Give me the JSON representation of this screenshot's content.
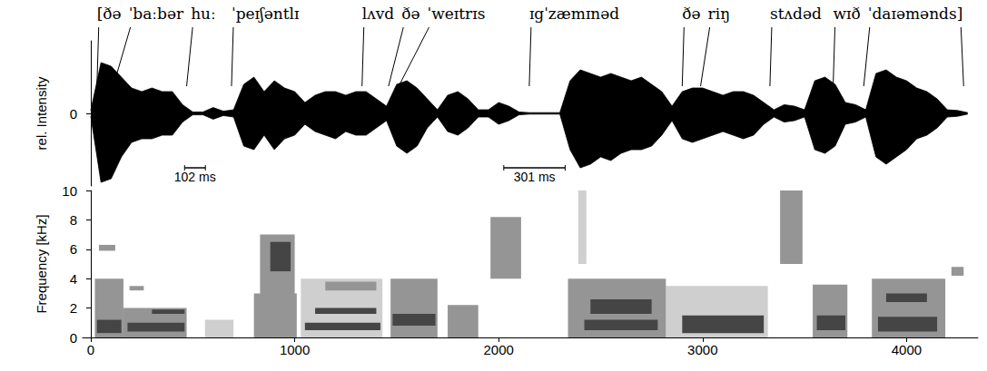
{
  "chart_data": [
    {
      "type": "area",
      "ylabel": "rel. Intensity",
      "xlim": [
        -40,
        4350
      ],
      "ylim": [
        -1,
        1
      ],
      "yticks": [
        0
      ],
      "tick_labels": "y",
      "x": [
        0,
        50,
        100,
        150,
        200,
        250,
        300,
        350,
        400,
        450,
        500,
        550,
        600,
        650,
        700,
        750,
        800,
        850,
        900,
        950,
        1000,
        1050,
        1100,
        1150,
        1200,
        1250,
        1300,
        1350,
        1400,
        1450,
        1500,
        1550,
        1600,
        1650,
        1700,
        1750,
        1800,
        1850,
        1900,
        1950,
        2000,
        2050,
        2100,
        2150,
        2200,
        2250,
        2300,
        2350,
        2400,
        2450,
        2500,
        2550,
        2600,
        2650,
        2700,
        2750,
        2800,
        2850,
        2900,
        2950,
        3000,
        3050,
        3100,
        3150,
        3200,
        3250,
        3300,
        3350,
        3400,
        3450,
        3500,
        3550,
        3600,
        3650,
        3700,
        3750,
        3800,
        3850,
        3900,
        3950,
        4000,
        4050,
        4100,
        4150,
        4200,
        4250,
        4300
      ],
      "series": [
        {
          "color": "#000000",
          "values": [
            0.04,
            0.7,
            0.65,
            0.5,
            0.35,
            0.3,
            0.35,
            0.3,
            0.3,
            0.12,
            0.02,
            0.02,
            0.08,
            0.03,
            0.05,
            0.4,
            0.5,
            0.3,
            0.45,
            0.35,
            0.3,
            0.15,
            0.25,
            0.3,
            0.3,
            0.25,
            0.3,
            0.3,
            0.2,
            0.1,
            0.4,
            0.45,
            0.35,
            0.2,
            0.05,
            0.25,
            0.3,
            0.2,
            0.05,
            0.05,
            0.15,
            0.1,
            0.02,
            0.01,
            0.01,
            0.01,
            0.01,
            0.45,
            0.6,
            0.55,
            0.5,
            0.55,
            0.5,
            0.45,
            0.5,
            0.4,
            0.3,
            0.1,
            0.3,
            0.35,
            0.35,
            0.3,
            0.25,
            0.3,
            0.3,
            0.25,
            0.15,
            0.05,
            0.12,
            0.1,
            0.05,
            0.45,
            0.5,
            0.4,
            0.15,
            0.12,
            0.05,
            0.55,
            0.6,
            0.5,
            0.45,
            0.35,
            0.3,
            0.2,
            0.05,
            0.04,
            0.01
          ]
        },
        {
          "color": "#000000",
          "values": [
            -0.04,
            -0.95,
            -0.9,
            -0.6,
            -0.4,
            -0.35,
            -0.35,
            -0.3,
            -0.3,
            -0.12,
            -0.02,
            -0.02,
            -0.08,
            -0.03,
            -0.05,
            -0.45,
            -0.5,
            -0.3,
            -0.5,
            -0.35,
            -0.3,
            -0.15,
            -0.25,
            -0.3,
            -0.35,
            -0.25,
            -0.3,
            -0.3,
            -0.2,
            -0.1,
            -0.45,
            -0.55,
            -0.45,
            -0.2,
            -0.05,
            -0.25,
            -0.3,
            -0.2,
            -0.05,
            -0.05,
            -0.15,
            -0.1,
            -0.02,
            -0.01,
            -0.01,
            -0.01,
            -0.01,
            -0.5,
            -0.75,
            -0.7,
            -0.6,
            -0.65,
            -0.55,
            -0.5,
            -0.5,
            -0.45,
            -0.3,
            -0.1,
            -0.35,
            -0.4,
            -0.35,
            -0.3,
            -0.25,
            -0.3,
            -0.35,
            -0.3,
            -0.15,
            -0.05,
            -0.12,
            -0.1,
            -0.05,
            -0.5,
            -0.55,
            -0.45,
            -0.15,
            -0.12,
            -0.05,
            -0.6,
            -0.7,
            -0.6,
            -0.5,
            -0.35,
            -0.3,
            -0.2,
            -0.05,
            -0.04,
            -0.01
          ]
        }
      ],
      "annotations": {
        "transcription": [
          {
            "text": "[ðə",
            "time": 30
          },
          {
            "text": "ˈbaːbər",
            "time": 110
          },
          {
            "text": "huː",
            "time": 470
          },
          {
            "text": "ˈpeɪʃəntlɪ",
            "time": 690
          },
          {
            "text": "lʌvd",
            "time": 1330
          },
          {
            "text": "ðə",
            "time": 1460
          },
          {
            "text": "ˈweɪtrɪs",
            "time": 1510
          },
          {
            "text": "ɪgˈzæmɪnəd",
            "time": 2150
          },
          {
            "text": "ðə",
            "time": 2900
          },
          {
            "text": "riŋ",
            "time": 2990
          },
          {
            "text": "stʌdəd",
            "time": 3330
          },
          {
            "text": "wɪð",
            "time": 3640
          },
          {
            "text": "ˈdaɪəmənds]",
            "time": 3790
          }
        ],
        "transcription_end": 4280,
        "scale_bars": [
          {
            "start": 460,
            "length": 102,
            "label": "102 ms"
          },
          {
            "start": 2025,
            "length": 301,
            "label": "301 ms"
          }
        ]
      }
    },
    {
      "type": "spectrogram",
      "ylabel": "Frequency [kHz]",
      "xlim": [
        -40,
        4350
      ],
      "xticks": [
        0,
        1000,
        2000,
        3000,
        4000
      ],
      "ylim": [
        0,
        10
      ],
      "yticks": [
        0,
        2,
        4,
        6,
        8,
        10
      ],
      "bands": [
        {
          "start": 20,
          "end": 160,
          "low": 0,
          "high": 4,
          "level": 2
        },
        {
          "start": 30,
          "end": 150,
          "low": 0.3,
          "high": 1.2,
          "level": 3
        },
        {
          "start": 40,
          "end": 120,
          "low": 5.9,
          "high": 6.3,
          "level": 2
        },
        {
          "start": 160,
          "end": 470,
          "low": 0,
          "high": 2,
          "level": 2
        },
        {
          "start": 180,
          "end": 460,
          "low": 0.4,
          "high": 1.0,
          "level": 3
        },
        {
          "start": 190,
          "end": 260,
          "low": 3.2,
          "high": 3.5,
          "level": 2
        },
        {
          "start": 300,
          "end": 460,
          "low": 1.6,
          "high": 1.9,
          "level": 3
        },
        {
          "start": 560,
          "end": 700,
          "low": 0,
          "high": 1.2,
          "level": 1
        },
        {
          "start": 800,
          "end": 1010,
          "low": 0,
          "high": 3,
          "level": 2
        },
        {
          "start": 830,
          "end": 1000,
          "low": 2.8,
          "high": 7,
          "level": 2
        },
        {
          "start": 880,
          "end": 980,
          "low": 4.5,
          "high": 6.5,
          "level": 3
        },
        {
          "start": 1030,
          "end": 1430,
          "low": 0,
          "high": 4,
          "level": 1
        },
        {
          "start": 1050,
          "end": 1420,
          "low": 0.5,
          "high": 1.0,
          "level": 3
        },
        {
          "start": 1100,
          "end": 1400,
          "low": 1.6,
          "high": 2.0,
          "level": 3
        },
        {
          "start": 1150,
          "end": 1400,
          "low": 3.2,
          "high": 3.8,
          "level": 2
        },
        {
          "start": 1470,
          "end": 1700,
          "low": 0,
          "high": 4,
          "level": 2
        },
        {
          "start": 1480,
          "end": 1690,
          "low": 0.8,
          "high": 1.6,
          "level": 3
        },
        {
          "start": 1750,
          "end": 1900,
          "low": 0,
          "high": 2.2,
          "level": 2
        },
        {
          "start": 1960,
          "end": 2110,
          "low": 4,
          "high": 8.2,
          "level": 2
        },
        {
          "start": 2340,
          "end": 2820,
          "low": 0,
          "high": 4,
          "level": 2
        },
        {
          "start": 2390,
          "end": 2430,
          "low": 5,
          "high": 10,
          "level": 1
        },
        {
          "start": 2420,
          "end": 2780,
          "low": 0.5,
          "high": 1.2,
          "level": 3
        },
        {
          "start": 2450,
          "end": 2750,
          "low": 1.6,
          "high": 2.6,
          "level": 3
        },
        {
          "start": 2820,
          "end": 3320,
          "low": 0,
          "high": 3.5,
          "level": 1
        },
        {
          "start": 2900,
          "end": 3300,
          "low": 0.3,
          "high": 1.5,
          "level": 3
        },
        {
          "start": 3380,
          "end": 3490,
          "low": 5,
          "high": 10,
          "level": 2
        },
        {
          "start": 3540,
          "end": 3710,
          "low": 0,
          "high": 3.6,
          "level": 2
        },
        {
          "start": 3560,
          "end": 3700,
          "low": 0.5,
          "high": 1.5,
          "level": 3
        },
        {
          "start": 3830,
          "end": 4190,
          "low": 0,
          "high": 4,
          "level": 2
        },
        {
          "start": 3860,
          "end": 4150,
          "low": 0.4,
          "high": 1.4,
          "level": 3
        },
        {
          "start": 3900,
          "end": 4100,
          "low": 2.4,
          "high": 3.0,
          "level": 3
        },
        {
          "start": 4220,
          "end": 4280,
          "low": 4.2,
          "high": 4.8,
          "level": 2
        }
      ]
    }
  ]
}
